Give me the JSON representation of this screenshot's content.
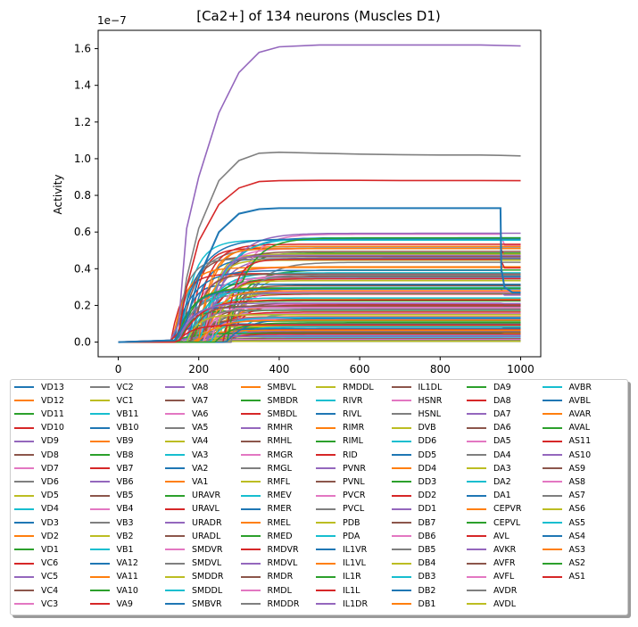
{
  "colors": [
    "#1f77b4",
    "#ff7f0e",
    "#2ca02c",
    "#d62728",
    "#9467bd",
    "#8c564b",
    "#e377c2",
    "#7f7f7f",
    "#bcbd22",
    "#17becf"
  ],
  "chart_data": {
    "type": "line",
    "title": "[Ca2+] of 134 neurons (Muscles D1)",
    "xlabel": "",
    "ylabel": "Activity",
    "offset_label": "1e−7",
    "xlim": [
      -50,
      1050
    ],
    "ylim": [
      -0.08,
      1.7
    ],
    "x_ticks": [
      0,
      200,
      400,
      600,
      800,
      1000
    ],
    "y_ticks": [
      0.0,
      0.2,
      0.4,
      0.6,
      0.8,
      1.0,
      1.2,
      1.4,
      1.6
    ],
    "y_tick_labels": [
      "0.0",
      "0.2",
      "0.4",
      "0.6",
      "0.8",
      "1.0",
      "1.2",
      "1.4",
      "1.6"
    ],
    "legend_placement": "below plot, 8 columns",
    "key_series": [
      {
        "name": "IL1DR",
        "color": "#9467bd",
        "x": [
          0,
          130,
          150,
          170,
          200,
          250,
          300,
          350,
          400,
          500,
          600,
          700,
          800,
          900,
          1000
        ],
        "values": [
          0,
          0.01,
          0.1,
          0.62,
          0.9,
          1.25,
          1.47,
          1.58,
          1.61,
          1.62,
          1.62,
          1.62,
          1.62,
          1.62,
          1.615
        ]
      },
      {
        "name": "RMDDR",
        "color": "#7f7f7f",
        "x": [
          0,
          130,
          150,
          170,
          200,
          250,
          300,
          350,
          400,
          500,
          600,
          700,
          800,
          900,
          950,
          1000
        ],
        "values": [
          0,
          0.01,
          0.05,
          0.35,
          0.62,
          0.88,
          0.99,
          1.03,
          1.035,
          1.03,
          1.025,
          1.022,
          1.02,
          1.02,
          1.018,
          1.015
        ]
      },
      {
        "name": "VA9",
        "color": "#d62728",
        "x": [
          0,
          130,
          150,
          170,
          200,
          250,
          300,
          350,
          400,
          500,
          600,
          700,
          800,
          900,
          1000
        ],
        "values": [
          0,
          0.01,
          0.05,
          0.3,
          0.55,
          0.75,
          0.84,
          0.875,
          0.88,
          0.882,
          0.882,
          0.881,
          0.881,
          0.881,
          0.88
        ]
      },
      {
        "name": "SMBVR",
        "color": "#1f77b4",
        "x": [
          0,
          140,
          170,
          200,
          250,
          300,
          350,
          400,
          500,
          600,
          700,
          800,
          900,
          950,
          952,
          960,
          980,
          1000
        ],
        "values": [
          0,
          0.01,
          0.12,
          0.35,
          0.6,
          0.7,
          0.725,
          0.73,
          0.73,
          0.73,
          0.73,
          0.73,
          0.73,
          0.73,
          0.4,
          0.3,
          0.27,
          0.27
        ]
      }
    ],
    "series_names": [
      "VD13",
      "VD12",
      "VD11",
      "VD10",
      "VD9",
      "VD8",
      "VD7",
      "VD6",
      "VD5",
      "VD4",
      "VD3",
      "VD2",
      "VD1",
      "VC6",
      "VC5",
      "VC4",
      "VC3",
      "VC2",
      "VC1",
      "VB11",
      "VB10",
      "VB9",
      "VB8",
      "VB7",
      "VB6",
      "VB5",
      "VB4",
      "VB3",
      "VB2",
      "VB1",
      "VA12",
      "VA11",
      "VA10",
      "VA9",
      "VA8",
      "VA7",
      "VA6",
      "VA5",
      "VA4",
      "VA3",
      "VA2",
      "VA1",
      "URAVR",
      "URAVL",
      "URADR",
      "URADL",
      "SMDVR",
      "SMDVL",
      "SMDDR",
      "SMDDL",
      "SMBVR",
      "SMBVL",
      "SMBDR",
      "SMBDL",
      "RMHR",
      "RMHL",
      "RMGR",
      "RMGL",
      "RMFL",
      "RMEV",
      "RMER",
      "RMEL",
      "RMED",
      "RMDVR",
      "RMDVL",
      "RMDR",
      "RMDL",
      "RMDDR",
      "RMDDL",
      "RIVR",
      "RIVL",
      "RIMR",
      "RIML",
      "RID",
      "PVNR",
      "PVNL",
      "PVCR",
      "PVCL",
      "PDB",
      "PDA",
      "IL1VR",
      "IL1VL",
      "IL1R",
      "IL1L",
      "IL1DR",
      "IL1DL",
      "HSNR",
      "HSNL",
      "DVB",
      "DD6",
      "DD5",
      "DD4",
      "DD3",
      "DD2",
      "DD1",
      "DB7",
      "DB6",
      "DB5",
      "DB4",
      "DB3",
      "DB2",
      "DB1",
      "DA9",
      "DA8",
      "DA7",
      "DA6",
      "DA5",
      "DA4",
      "DA3",
      "DA2",
      "DA1",
      "CEPVR",
      "CEPVL",
      "AVL",
      "AVKR",
      "AVFR",
      "AVFL",
      "AVDR",
      "AVDL",
      "AVBR",
      "AVBL",
      "AVAR",
      "AVAL",
      "AS11",
      "AS10",
      "AS9",
      "AS8",
      "AS7",
      "AS6",
      "AS5",
      "AS4",
      "AS3",
      "AS2",
      "AS1"
    ]
  }
}
